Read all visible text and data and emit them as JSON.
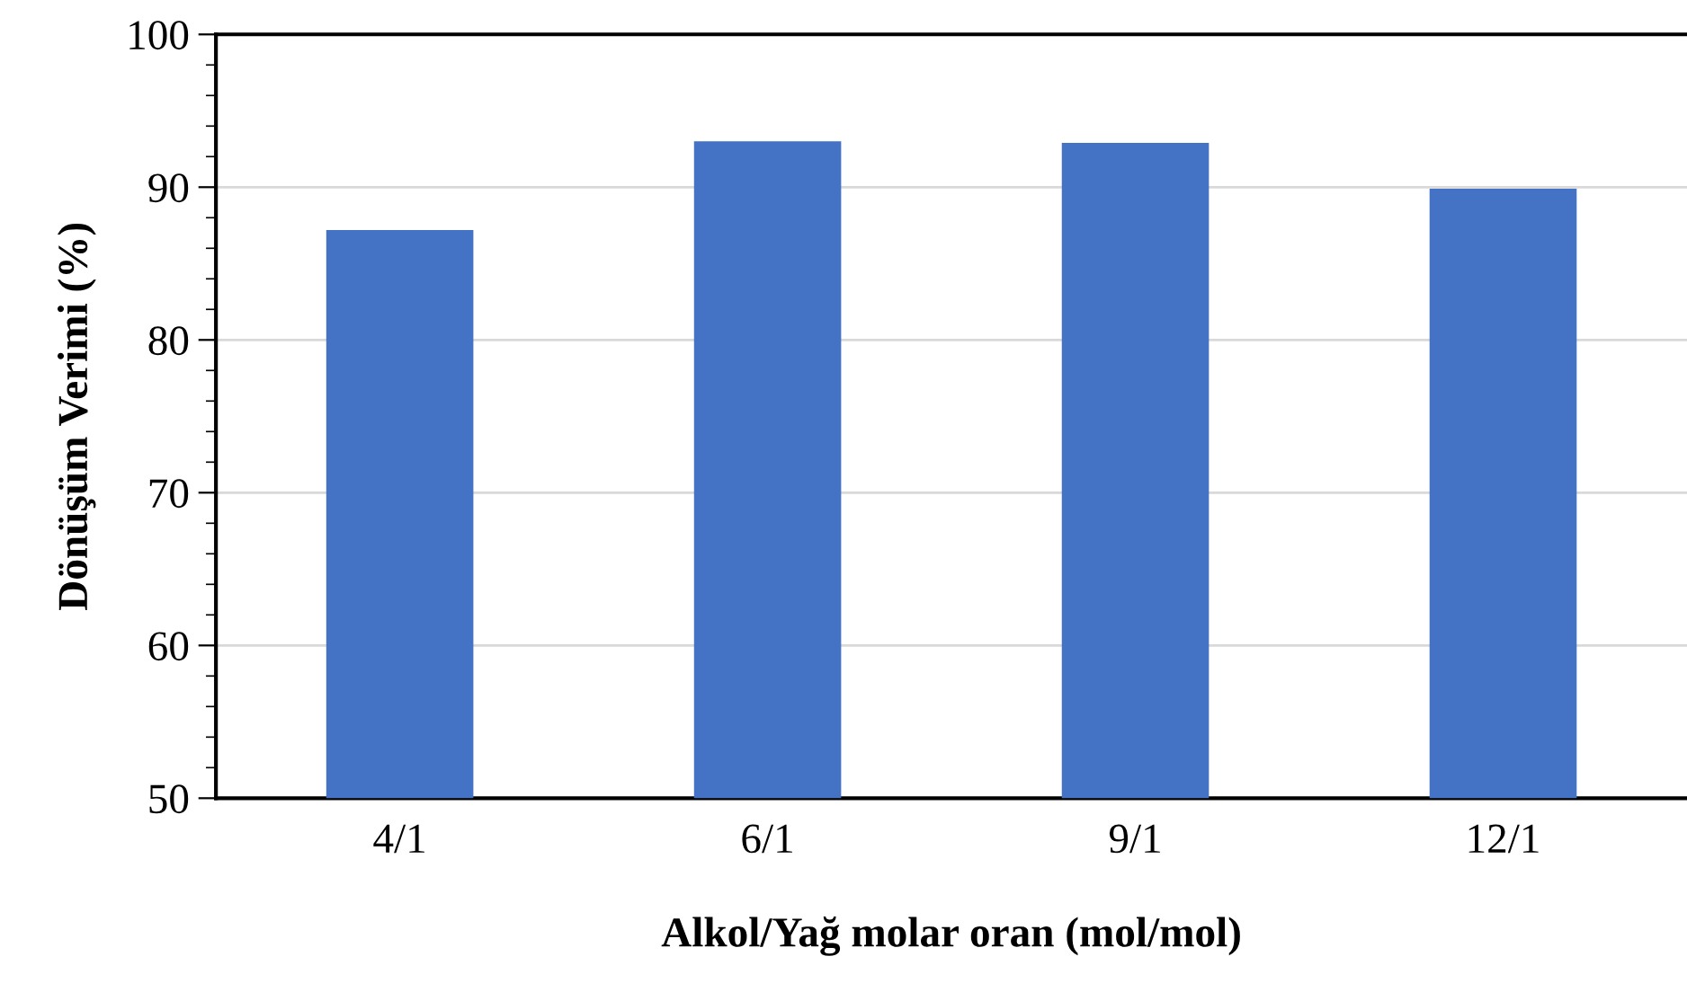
{
  "chart_data": {
    "type": "bar",
    "xlabel": "Alkol/Yağ molar oran (mol/mol)",
    "ylabel": "Dönüşüm Verimi (%)",
    "categories": [
      "4/1",
      "6/1",
      "9/1",
      "12/1"
    ],
    "values": [
      87.2,
      93.0,
      92.9,
      89.9
    ],
    "color": "#4472c4",
    "ylim": [
      50,
      100
    ],
    "yticks": [
      50,
      60,
      70,
      80,
      90,
      100
    ],
    "grid": "y"
  }
}
